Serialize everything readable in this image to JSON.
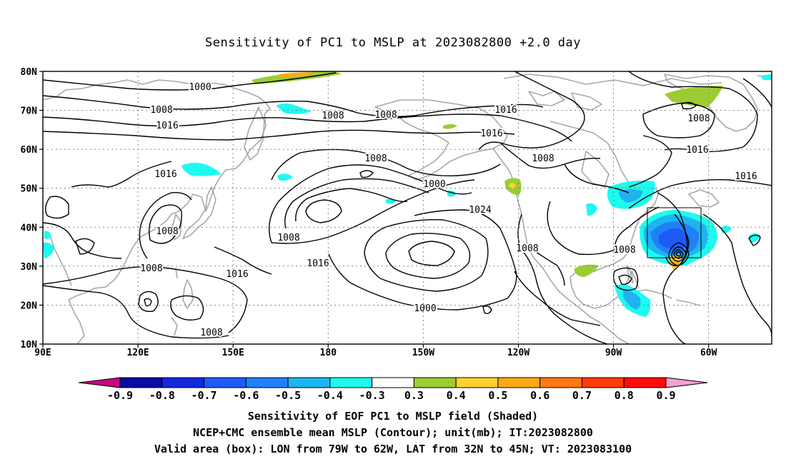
{
  "title": "Sensitivity of PC1 to MSLP at 2023082800 +2.0 day",
  "lat_labels": [
    "80N",
    "70N",
    "60N",
    "50N",
    "40N",
    "30N",
    "20N",
    "10N"
  ],
  "lon_labels": [
    "90E",
    "120E",
    "150E",
    "180",
    "150W",
    "120W",
    "90W",
    "60W"
  ],
  "contour_labels": [
    "1000",
    "1008",
    "1016",
    "1008",
    "1008",
    "1016",
    "1016",
    "1000",
    "1008",
    "1016",
    "1024",
    "1016",
    "1016",
    "1000",
    "1008",
    "1016",
    "1008",
    "1008",
    "1008",
    "1008",
    "1008",
    "1008",
    "1008",
    "1016"
  ],
  "colorbar": {
    "labels": [
      "-0.9",
      "-0.8",
      "-0.7",
      "-0.6",
      "-0.5",
      "-0.4",
      "-0.3",
      "0.3",
      "0.4",
      "0.5",
      "0.6",
      "0.7",
      "0.8",
      "0.9"
    ],
    "colors": [
      "#c8087e",
      "#0a0aa0",
      "#1428dc",
      "#1e5af5",
      "#1e82f5",
      "#1eb4f0",
      "#1efaf0",
      "#ffffff",
      "#9bcd32",
      "#ffd232",
      "#ffaa14",
      "#ff7814",
      "#ff3c0a",
      "#ff0a0a",
      "#f5a0d2"
    ]
  },
  "valid_area": {
    "lon_from": "79W",
    "lon_to": "62W",
    "lat_from": "32N",
    "lat_to": "45N"
  },
  "captions": [
    "Sensitivity of EOF PC1 to MSLP field (Shaded)",
    "NCEP+CMC ensemble mean MSLP (Contour); unit(mb); IT:2023082800",
    "Valid area (box): LON from 79W to 62W, LAT from 32N to 45N; VT: 2023083100"
  ]
}
